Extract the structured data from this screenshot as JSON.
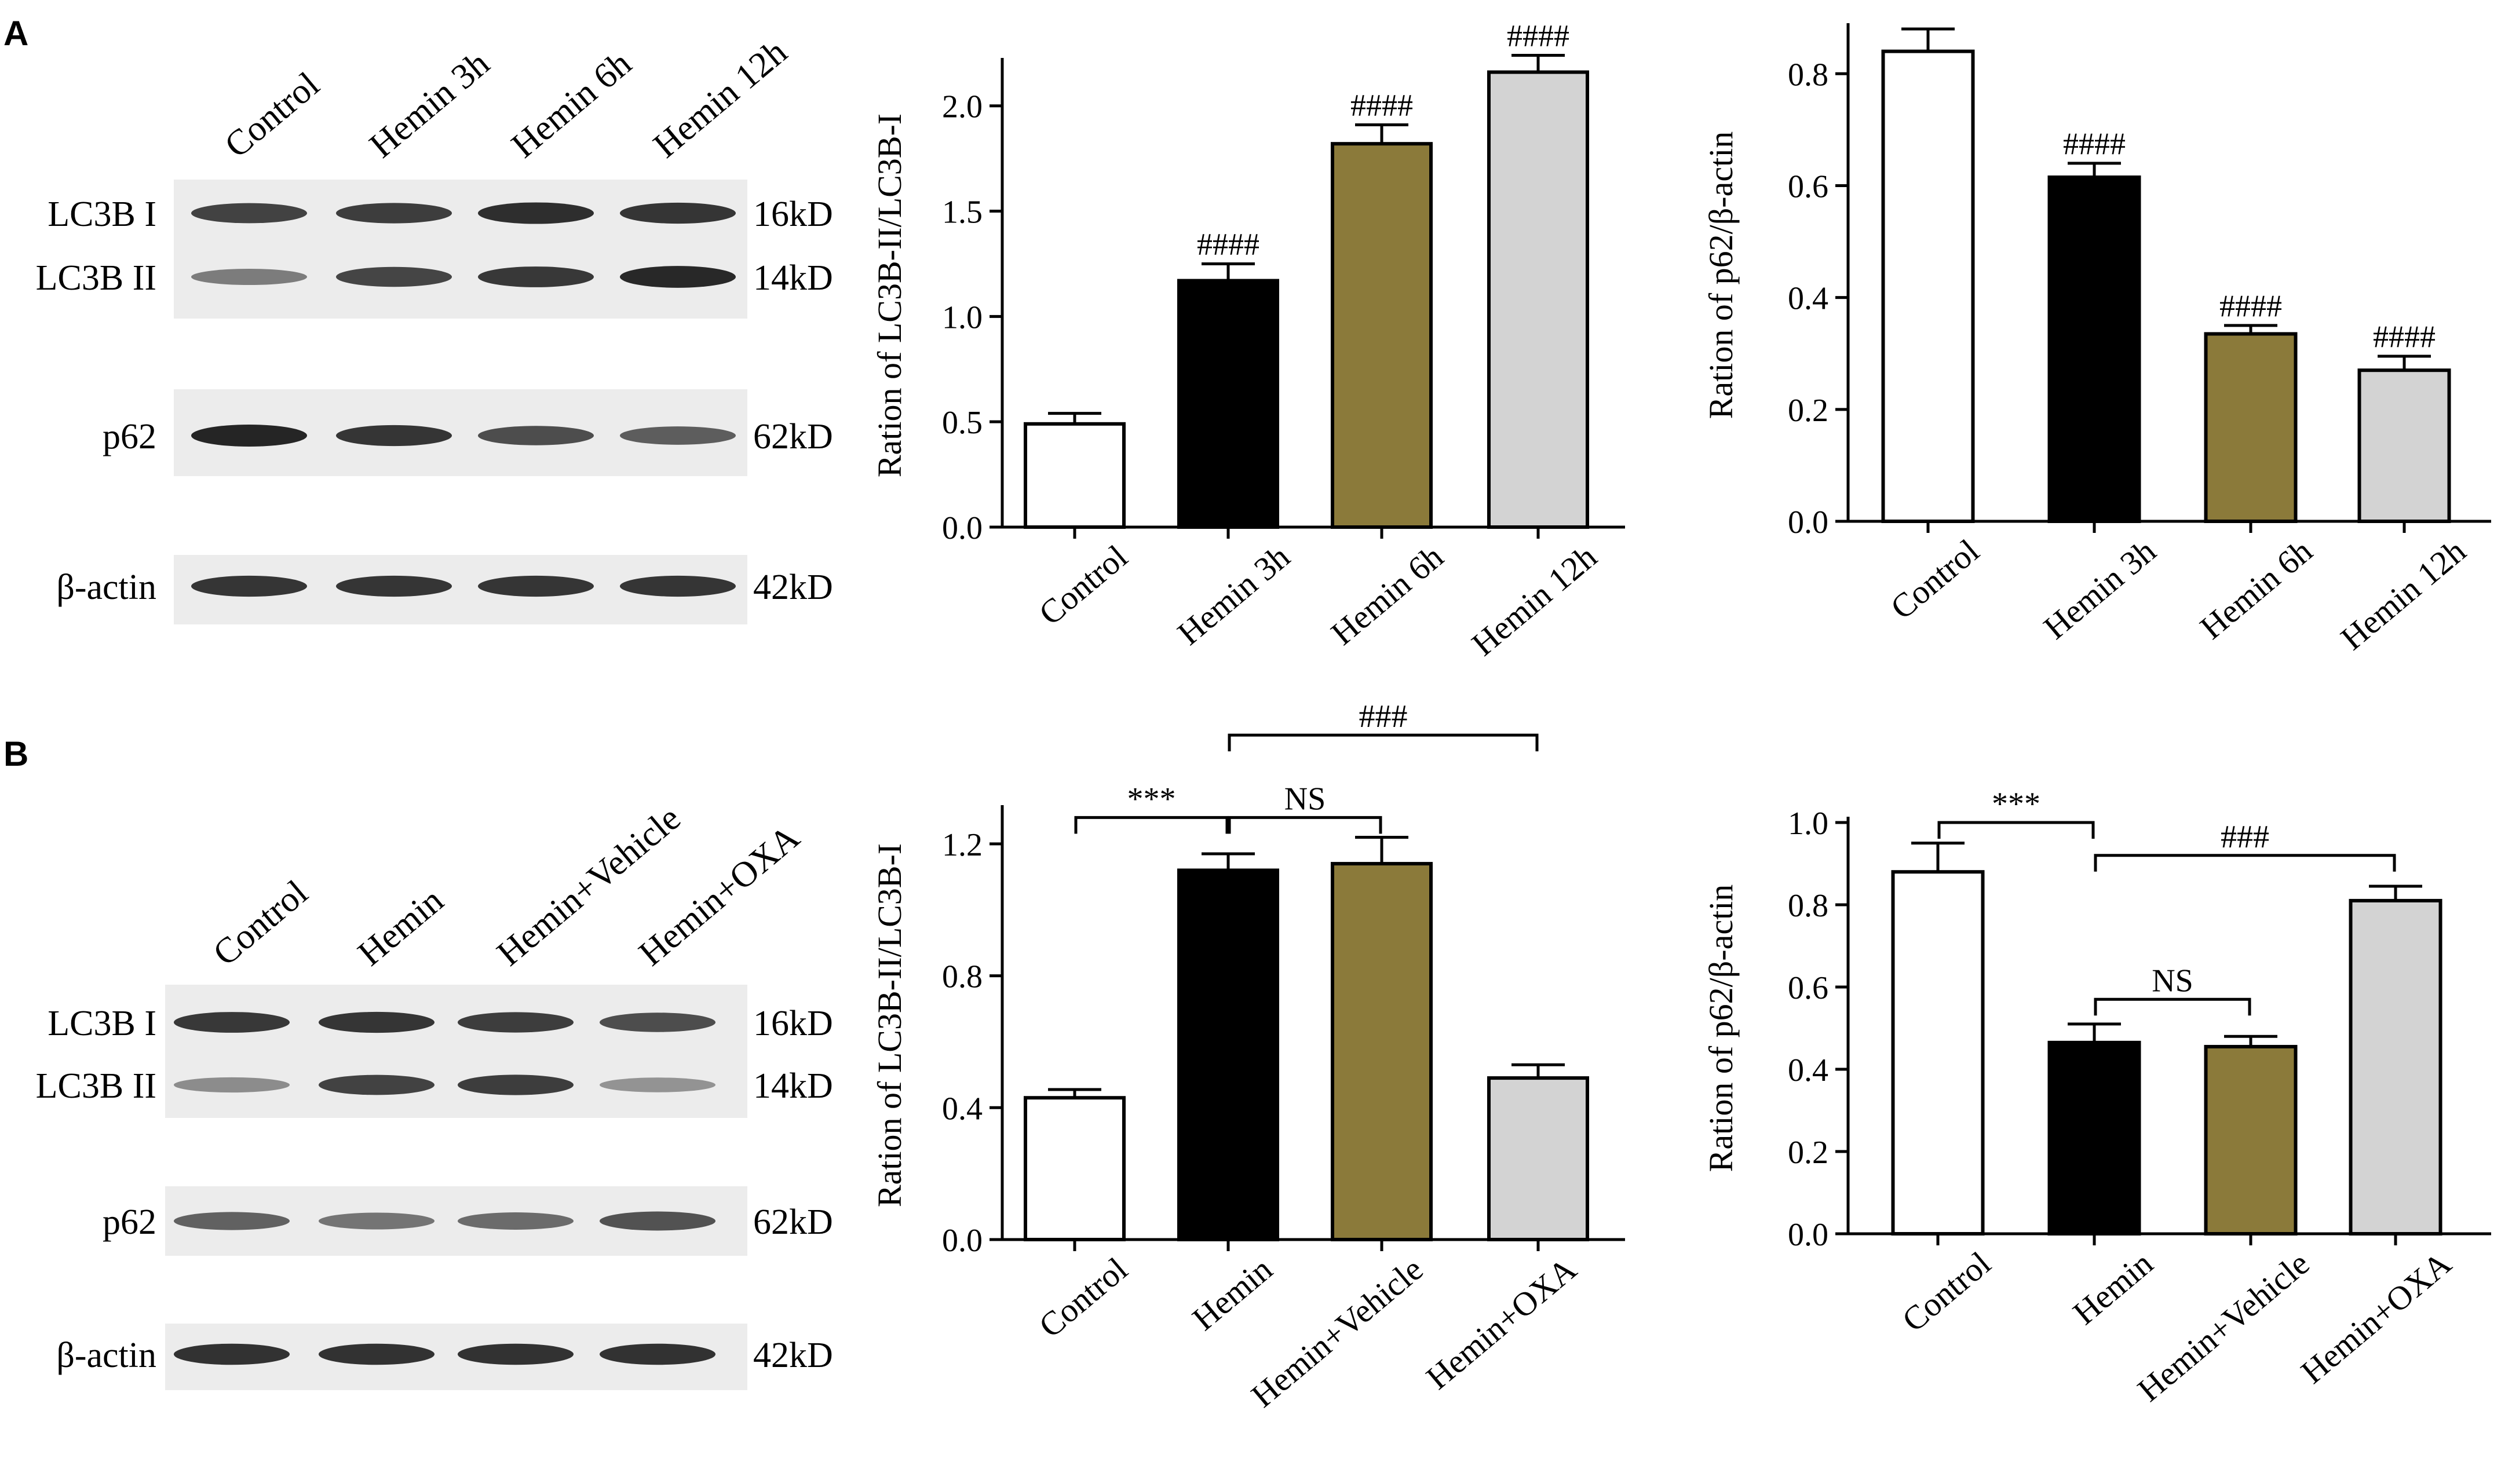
{
  "panels": [
    {
      "letter": "A",
      "blot": {
        "lanes": [
          "Control",
          "Hemin 3h",
          "Hemin 6h",
          "Hemin 12h"
        ],
        "rows": [
          {
            "protein": "LC3B I",
            "weight": "16kD",
            "intensity": [
              0.82,
              0.85,
              0.95,
              0.9
            ]
          },
          {
            "protein": "LC3B II",
            "weight": "14kD",
            "intensity": [
              0.45,
              0.8,
              0.88,
              0.98
            ]
          },
          {
            "protein": "p62",
            "weight": "62kD",
            "intensity": [
              1.0,
              0.9,
              0.75,
              0.65
            ]
          },
          {
            "protein": "β-actin",
            "weight": "42kD",
            "intensity": [
              0.9,
              0.9,
              0.9,
              0.9
            ]
          }
        ]
      }
    },
    {
      "letter": "B",
      "blot": {
        "lanes": [
          "Control",
          "Hemin",
          "Hemin+Vehicle",
          "Hemin+OXA"
        ],
        "rows": [
          {
            "protein": "LC3B I",
            "weight": "16kD",
            "intensity": [
              0.88,
              0.9,
              0.85,
              0.75
            ]
          },
          {
            "protein": "LC3B II",
            "weight": "14kD",
            "intensity": [
              0.35,
              0.82,
              0.85,
              0.3
            ]
          },
          {
            "protein": "p62",
            "weight": "62kD",
            "intensity": [
              0.62,
              0.5,
              0.55,
              0.72
            ]
          },
          {
            "protein": "β-actin",
            "weight": "42kD",
            "intensity": [
              0.92,
              0.92,
              0.92,
              0.92
            ]
          }
        ]
      }
    }
  ],
  "colors": {
    "control": "#ffffff",
    "hemin": "#000000",
    "vehicle": "#8b7a3a",
    "treatment": "#d3d3d3",
    "axis": "#000000"
  },
  "chart_data": [
    {
      "type": "bar",
      "panel": "A",
      "categories": [
        "Control",
        "Hemin 3h",
        "Hemin 6h",
        "Hemin 12h"
      ],
      "values": [
        0.49,
        1.17,
        1.82,
        2.16
      ],
      "errors": [
        0.05,
        0.08,
        0.09,
        0.08
      ],
      "title": "",
      "xlabel": "",
      "ylabel": "Ration of LC3B-II/LC3B-I",
      "ylim": [
        0,
        2.2
      ],
      "yticks": [
        0.0,
        0.5,
        1.0,
        1.5,
        2.0
      ],
      "ytick_labels": [
        "0.0",
        "0.5",
        "1.0",
        "1.5",
        "2.0"
      ],
      "annotations": [
        "",
        "####",
        "####",
        "####"
      ],
      "brackets": []
    },
    {
      "type": "bar",
      "panel": "A",
      "categories": [
        "Control",
        "Hemin 3h",
        "Hemin 6h",
        "Hemin 12h"
      ],
      "values": [
        0.84,
        0.615,
        0.335,
        0.27
      ],
      "errors": [
        0.04,
        0.025,
        0.015,
        0.025
      ],
      "title": "",
      "xlabel": "",
      "ylabel": "Ration of p62/β-actin",
      "ylim": [
        0,
        0.88
      ],
      "yticks": [
        0.0,
        0.2,
        0.4,
        0.6,
        0.8
      ],
      "ytick_labels": [
        "0.0",
        "0.2",
        "0.4",
        "0.6",
        "0.8"
      ],
      "annotations": [
        "",
        "####",
        "####",
        "####"
      ],
      "brackets": []
    },
    {
      "type": "bar",
      "panel": "B",
      "categories": [
        "Control",
        "Hemin",
        "Hemin+Vehicle",
        "Hemin+OXA"
      ],
      "values": [
        0.43,
        1.12,
        1.14,
        0.49
      ],
      "errors": [
        0.025,
        0.05,
        0.08,
        0.04
      ],
      "title": "",
      "xlabel": "",
      "ylabel": "Ration of LC3B-II/LC3B-I",
      "ylim": [
        0,
        1.3
      ],
      "yticks": [
        0.0,
        0.4,
        0.8,
        1.2
      ],
      "ytick_labels": [
        "0.0",
        "0.4",
        "0.8",
        "1.2"
      ],
      "annotations": [
        "",
        "",
        "",
        ""
      ],
      "brackets": [
        {
          "from": 0,
          "to": 1,
          "y": 1.28,
          "label": "***"
        },
        {
          "from": 1,
          "to": 2,
          "y": 1.28,
          "label": "NS"
        },
        {
          "from": 1,
          "to": 3,
          "y": 1.53,
          "label": "###"
        }
      ]
    },
    {
      "type": "bar",
      "panel": "B",
      "categories": [
        "Control",
        "Hemin",
        "Hemin+Vehicle",
        "Hemin+OXA"
      ],
      "values": [
        0.88,
        0.465,
        0.455,
        0.81
      ],
      "errors": [
        0.07,
        0.045,
        0.025,
        0.035
      ],
      "title": "",
      "xlabel": "",
      "ylabel": "Ration of p62/β-actin",
      "ylim": [
        0,
        1.0
      ],
      "yticks": [
        0.0,
        0.2,
        0.4,
        0.6,
        0.8,
        1.0
      ],
      "ytick_labels": [
        "0.0",
        "0.2",
        "0.4",
        "0.6",
        "0.8",
        "1.0"
      ],
      "annotations": [
        "",
        "",
        "",
        ""
      ],
      "brackets": [
        {
          "from": 0,
          "to": 1,
          "y": 1.0,
          "label": "***"
        },
        {
          "from": 1,
          "to": 3,
          "y": 0.92,
          "label": "###"
        },
        {
          "from": 1,
          "to": 2,
          "y": 0.57,
          "label": "NS"
        }
      ]
    }
  ]
}
